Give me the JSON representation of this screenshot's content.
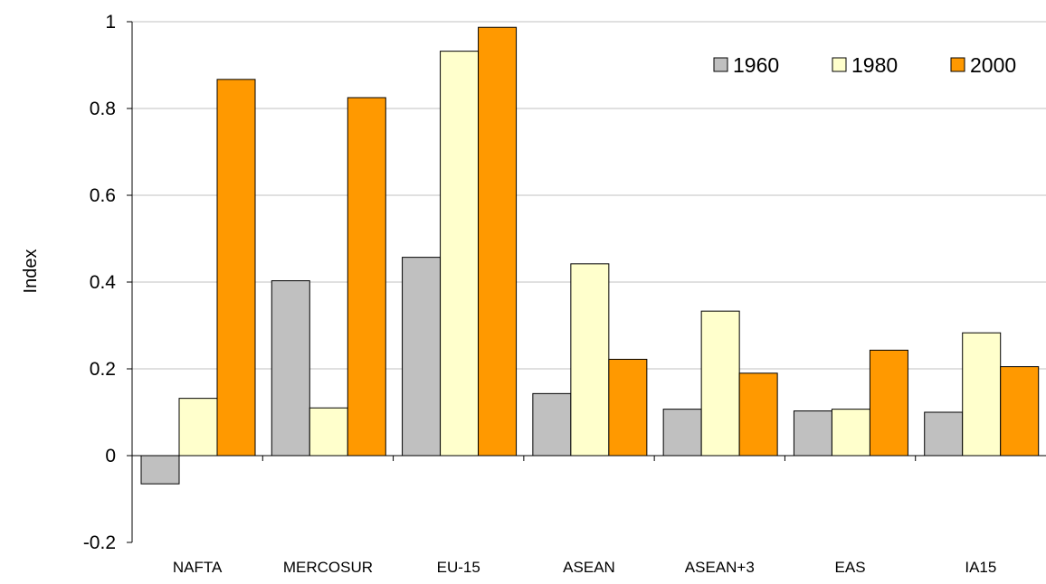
{
  "chart_data": {
    "type": "bar",
    "title": "",
    "xlabel": "",
    "ylabel": "Index",
    "ylim": [
      -0.2,
      1
    ],
    "yticks": [
      -0.2,
      0,
      0.2,
      0.4,
      0.6,
      0.8,
      1
    ],
    "ytick_labels": [
      "-0.2",
      "0",
      "0.2",
      "0.4",
      "0.6",
      "0.8",
      "1"
    ],
    "categories": [
      "NAFTA",
      "MERCOSUR",
      "EU-15",
      "ASEAN",
      "ASEAN+3",
      "EAS",
      "IA15"
    ],
    "series": [
      {
        "name": "1960",
        "color": "#c0c0c0",
        "values": [
          -0.065,
          0.403,
          0.457,
          0.143,
          0.107,
          0.103,
          0.1
        ]
      },
      {
        "name": "1980",
        "color": "#ffffcc",
        "values": [
          0.132,
          0.11,
          0.932,
          0.442,
          0.333,
          0.107,
          0.283
        ]
      },
      {
        "name": "2000",
        "color": "#ff9900",
        "values": [
          0.867,
          0.825,
          0.987,
          0.222,
          0.19,
          0.243,
          0.205
        ]
      }
    ],
    "grid": true,
    "legend_position": "top-right"
  }
}
